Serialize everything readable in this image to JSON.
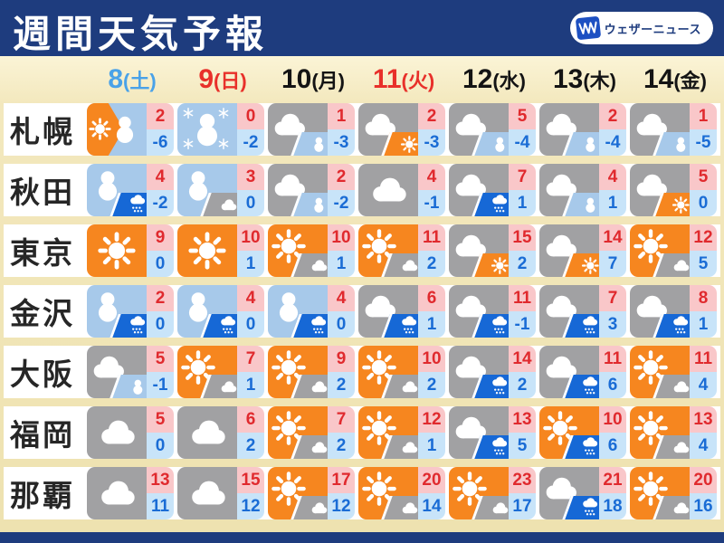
{
  "header": {
    "title": "週間天気予報",
    "logo_text": "ウェザーニュース"
  },
  "dates": [
    {
      "num": "8",
      "day": "(土)",
      "color": "#4aa2e8"
    },
    {
      "num": "9",
      "day": "(日)",
      "color": "#e8302a"
    },
    {
      "num": "10",
      "day": "(月)",
      "color": "#141414"
    },
    {
      "num": "11",
      "day": "(火)",
      "color": "#e8302a"
    },
    {
      "num": "12",
      "day": "(水)",
      "color": "#141414"
    },
    {
      "num": "13",
      "day": "(木)",
      "color": "#141414"
    },
    {
      "num": "14",
      "day": "(金)",
      "color": "#141414"
    }
  ],
  "cities": [
    {
      "name": "札幌",
      "days": [
        {
          "icon": "sun-later-snow",
          "high": 2,
          "low": -6
        },
        {
          "icon": "snow",
          "high": 0,
          "low": -2
        },
        {
          "icon": "cloud-then-snow",
          "high": 1,
          "low": -3
        },
        {
          "icon": "cloud-then-sun",
          "high": 2,
          "low": -3
        },
        {
          "icon": "cloud-then-snow",
          "high": 5,
          "low": -4
        },
        {
          "icon": "cloud-then-snow",
          "high": 2,
          "low": -4
        },
        {
          "icon": "cloud-then-snow",
          "high": 1,
          "low": -5
        }
      ]
    },
    {
      "name": "秋田",
      "days": [
        {
          "icon": "snow-then-rain",
          "high": 4,
          "low": -2
        },
        {
          "icon": "snow-then-cloud",
          "high": 3,
          "low": 0
        },
        {
          "icon": "cloud-then-snow",
          "high": 2,
          "low": -2
        },
        {
          "icon": "cloud",
          "high": 4,
          "low": -1
        },
        {
          "icon": "cloud-then-rain",
          "high": 7,
          "low": 1
        },
        {
          "icon": "cloud-then-snow",
          "high": 4,
          "low": 1
        },
        {
          "icon": "cloud-then-sun",
          "high": 5,
          "low": 0
        }
      ]
    },
    {
      "name": "東京",
      "days": [
        {
          "icon": "sun",
          "high": 9,
          "low": 0
        },
        {
          "icon": "sun",
          "high": 10,
          "low": 1
        },
        {
          "icon": "sun-then-cloud",
          "high": 10,
          "low": 1
        },
        {
          "icon": "sun-then-cloud",
          "high": 11,
          "low": 2
        },
        {
          "icon": "cloud-then-sun",
          "high": 15,
          "low": 2
        },
        {
          "icon": "cloud-then-sun",
          "high": 14,
          "low": 7
        },
        {
          "icon": "sun-then-cloud",
          "high": 12,
          "low": 5
        }
      ]
    },
    {
      "name": "金沢",
      "days": [
        {
          "icon": "snow-then-rain",
          "high": 2,
          "low": 0
        },
        {
          "icon": "snow-then-rain",
          "high": 4,
          "low": 0
        },
        {
          "icon": "snow-then-rain",
          "high": 4,
          "low": 0
        },
        {
          "icon": "cloud-then-rain",
          "high": 6,
          "low": 1
        },
        {
          "icon": "cloud-then-rain",
          "high": 11,
          "low": -1
        },
        {
          "icon": "cloud-then-rain",
          "high": 7,
          "low": 3
        },
        {
          "icon": "cloud-then-rain",
          "high": 8,
          "low": 1
        }
      ]
    },
    {
      "name": "大阪",
      "days": [
        {
          "icon": "cloud-then-snow",
          "high": 5,
          "low": -1
        },
        {
          "icon": "sun-then-cloud",
          "high": 7,
          "low": 1
        },
        {
          "icon": "sun-then-cloud",
          "high": 9,
          "low": 2
        },
        {
          "icon": "sun-then-cloud",
          "high": 10,
          "low": 2
        },
        {
          "icon": "cloud-then-rain",
          "high": 14,
          "low": 2
        },
        {
          "icon": "cloud-then-rain",
          "high": 11,
          "low": 6
        },
        {
          "icon": "sun-then-cloud",
          "high": 11,
          "low": 4
        }
      ]
    },
    {
      "name": "福岡",
      "days": [
        {
          "icon": "cloud",
          "high": 5,
          "low": 0
        },
        {
          "icon": "cloud",
          "high": 6,
          "low": 2
        },
        {
          "icon": "sun-then-cloud",
          "high": 7,
          "low": 2
        },
        {
          "icon": "sun-then-cloud",
          "high": 12,
          "low": 1
        },
        {
          "icon": "cloud-then-rain",
          "high": 13,
          "low": 5
        },
        {
          "icon": "sun-then-rain",
          "high": 10,
          "low": 6
        },
        {
          "icon": "sun-then-cloud",
          "high": 13,
          "low": 4
        }
      ]
    },
    {
      "name": "那覇",
      "days": [
        {
          "icon": "cloud",
          "high": 13,
          "low": 11
        },
        {
          "icon": "cloud",
          "high": 15,
          "low": 12
        },
        {
          "icon": "sun-then-cloud",
          "high": 17,
          "low": 12
        },
        {
          "icon": "sun-then-cloud",
          "high": 20,
          "low": 14
        },
        {
          "icon": "sun-then-cloud",
          "high": 23,
          "low": 17
        },
        {
          "icon": "cloud-then-rain",
          "high": 21,
          "low": 18
        },
        {
          "icon": "sun-then-cloud",
          "high": 20,
          "low": 16
        }
      ]
    }
  ],
  "colors": {
    "header_navy": "#1e3c7e",
    "cream_band": "#f3e8bd",
    "sunny_orange": "#f6861f",
    "cloud_gray": "#a1a1a3",
    "snow_lightblue": "#a7c9ea",
    "rain_blue": "#1668d6",
    "high_temp_bg": "#f9c7c9",
    "high_temp_text": "#e02a2e",
    "low_temp_bg": "#c8e4f9",
    "low_temp_text": "#1a6cd5",
    "saturday_blue": "#4aa2e8",
    "holiday_red": "#e8302a"
  }
}
